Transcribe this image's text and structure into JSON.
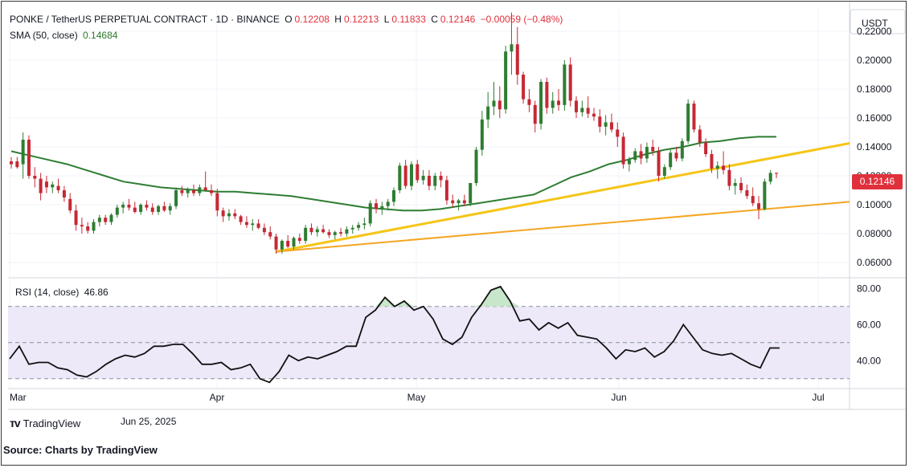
{
  "header": {
    "symbol": "PONKE / TetherUS PERPETUAL CONTRACT · 1D · BINANCE",
    "o_label": "O",
    "o_value": "0.12208",
    "h_label": "H",
    "h_value": "0.12213",
    "l_label": "L",
    "l_value": "0.11833",
    "c_label": "C",
    "c_value": "0.12146",
    "change": "−0.00059 (−0.48%)",
    "sma_label": "SMA (50, close)",
    "sma_value": "0.14684",
    "rsi_label": "RSI (14, close)",
    "rsi_value": "46.86"
  },
  "price_axis": {
    "currency": "USDT",
    "current_price": "0.12146"
  },
  "footer": {
    "brand": "TradingView",
    "date": "Jun 25, 2025",
    "source": "Source: Charts by TradingView"
  },
  "colors": {
    "up": "#2e7d32",
    "down": "#c62834",
    "sma": "#2e7d32",
    "trendline_upper": "#f5c518",
    "trendline_lower": "#f5a623",
    "rsi_band": "#ede9f9",
    "rsi_line": "#111111"
  },
  "chart_data": [
    {
      "type": "candlestick",
      "title": "PONKE / TetherUS PERPETUAL CONTRACT · 1D · BINANCE",
      "x_tick_labels": [
        "Mar",
        "Apr",
        "May",
        "Jun",
        "Jul"
      ],
      "y_tick_labels": [
        "0.22000",
        "0.20000",
        "0.18000",
        "0.16000",
        "0.14000",
        "0.12000",
        "0.10000",
        "0.08000",
        "0.06000"
      ],
      "ylim": [
        0.05,
        0.235
      ],
      "candles": [
        [
          0.13,
          0.133,
          0.125,
          0.128
        ],
        [
          0.13,
          0.133,
          0.125,
          0.126
        ],
        [
          0.128,
          0.15,
          0.118,
          0.145
        ],
        [
          0.145,
          0.148,
          0.118,
          0.12
        ],
        [
          0.12,
          0.126,
          0.112,
          0.118
        ],
        [
          0.118,
          0.122,
          0.103,
          0.108
        ],
        [
          0.116,
          0.12,
          0.108,
          0.112
        ],
        [
          0.112,
          0.116,
          0.108,
          0.114
        ],
        [
          0.113,
          0.118,
          0.108,
          0.11
        ],
        [
          0.11,
          0.113,
          0.102,
          0.105
        ],
        [
          0.104,
          0.108,
          0.094,
          0.096
        ],
        [
          0.096,
          0.1,
          0.082,
          0.086
        ],
        [
          0.086,
          0.091,
          0.08,
          0.085
        ],
        [
          0.085,
          0.088,
          0.08,
          0.082
        ],
        [
          0.082,
          0.09,
          0.08,
          0.088
        ],
        [
          0.088,
          0.093,
          0.085,
          0.091
        ],
        [
          0.091,
          0.093,
          0.086,
          0.088
        ],
        [
          0.088,
          0.094,
          0.086,
          0.093
        ],
        [
          0.093,
          0.1,
          0.091,
          0.098
        ],
        [
          0.098,
          0.102,
          0.094,
          0.1
        ],
        [
          0.1,
          0.104,
          0.096,
          0.098
        ],
        [
          0.098,
          0.102,
          0.094,
          0.095
        ],
        [
          0.095,
          0.101,
          0.093,
          0.1
        ],
        [
          0.1,
          0.103,
          0.096,
          0.098
        ],
        [
          0.098,
          0.101,
          0.093,
          0.095
        ],
        [
          0.095,
          0.1,
          0.093,
          0.099
        ],
        [
          0.099,
          0.102,
          0.095,
          0.096
        ],
        [
          0.096,
          0.101,
          0.093,
          0.099
        ],
        [
          0.099,
          0.112,
          0.097,
          0.11
        ],
        [
          0.11,
          0.113,
          0.106,
          0.108
        ],
        [
          0.108,
          0.112,
          0.105,
          0.11
        ],
        [
          0.11,
          0.114,
          0.106,
          0.108
        ],
        [
          0.108,
          0.114,
          0.106,
          0.112
        ],
        [
          0.112,
          0.123,
          0.11,
          0.11
        ],
        [
          0.11,
          0.114,
          0.106,
          0.108
        ],
        [
          0.108,
          0.111,
          0.092,
          0.096
        ],
        [
          0.096,
          0.098,
          0.088,
          0.092
        ],
        [
          0.092,
          0.097,
          0.089,
          0.094
        ],
        [
          0.094,
          0.097,
          0.09,
          0.092
        ],
        [
          0.092,
          0.093,
          0.086,
          0.088
        ],
        [
          0.088,
          0.092,
          0.084,
          0.086
        ],
        [
          0.086,
          0.09,
          0.082,
          0.087
        ],
        [
          0.087,
          0.09,
          0.083,
          0.084
        ],
        [
          0.084,
          0.087,
          0.079,
          0.081
        ],
        [
          0.081,
          0.085,
          0.076,
          0.078
        ],
        [
          0.078,
          0.08,
          0.066,
          0.069
        ],
        [
          0.069,
          0.076,
          0.066,
          0.075
        ],
        [
          0.075,
          0.079,
          0.07,
          0.071
        ],
        [
          0.071,
          0.078,
          0.069,
          0.077
        ],
        [
          0.077,
          0.08,
          0.073,
          0.075
        ],
        [
          0.075,
          0.086,
          0.073,
          0.084
        ],
        [
          0.084,
          0.087,
          0.079,
          0.081
        ],
        [
          0.081,
          0.085,
          0.078,
          0.083
        ],
        [
          0.083,
          0.086,
          0.08,
          0.081
        ],
        [
          0.081,
          0.083,
          0.077,
          0.079
        ],
        [
          0.079,
          0.082,
          0.076,
          0.081
        ],
        [
          0.081,
          0.084,
          0.078,
          0.08
        ],
        [
          0.08,
          0.085,
          0.078,
          0.083
        ],
        [
          0.083,
          0.086,
          0.08,
          0.084
        ],
        [
          0.084,
          0.088,
          0.082,
          0.086
        ],
        [
          0.086,
          0.091,
          0.083,
          0.087
        ],
        [
          0.087,
          0.103,
          0.085,
          0.101
        ],
        [
          0.101,
          0.104,
          0.094,
          0.097
        ],
        [
          0.097,
          0.102,
          0.093,
          0.099
        ],
        [
          0.099,
          0.104,
          0.096,
          0.102
        ],
        [
          0.102,
          0.112,
          0.099,
          0.11
        ],
        [
          0.11,
          0.129,
          0.108,
          0.127
        ],
        [
          0.127,
          0.131,
          0.111,
          0.113
        ],
        [
          0.113,
          0.13,
          0.11,
          0.128
        ],
        [
          0.128,
          0.131,
          0.115,
          0.117
        ],
        [
          0.117,
          0.124,
          0.114,
          0.12
        ],
        [
          0.12,
          0.124,
          0.11,
          0.113
        ],
        [
          0.113,
          0.122,
          0.11,
          0.12
        ],
        [
          0.12,
          0.123,
          0.112,
          0.117
        ],
        [
          0.117,
          0.12,
          0.1,
          0.103
        ],
        [
          0.103,
          0.107,
          0.098,
          0.101
        ],
        [
          0.101,
          0.104,
          0.096,
          0.103
        ],
        [
          0.103,
          0.107,
          0.099,
          0.101
        ],
        [
          0.101,
          0.115,
          0.099,
          0.115
        ],
        [
          0.115,
          0.14,
          0.113,
          0.138
        ],
        [
          0.138,
          0.165,
          0.134,
          0.159
        ],
        [
          0.159,
          0.178,
          0.153,
          0.168
        ],
        [
          0.168,
          0.185,
          0.162,
          0.172
        ],
        [
          0.172,
          0.182,
          0.16,
          0.166
        ],
        [
          0.166,
          0.21,
          0.163,
          0.206
        ],
        [
          0.206,
          0.233,
          0.19,
          0.211
        ],
        [
          0.211,
          0.223,
          0.183,
          0.19
        ],
        [
          0.19,
          0.192,
          0.17,
          0.173
        ],
        [
          0.173,
          0.18,
          0.164,
          0.169
        ],
        [
          0.169,
          0.172,
          0.15,
          0.156
        ],
        [
          0.156,
          0.187,
          0.152,
          0.185
        ],
        [
          0.185,
          0.188,
          0.163,
          0.167
        ],
        [
          0.167,
          0.178,
          0.163,
          0.172
        ],
        [
          0.172,
          0.18,
          0.165,
          0.169
        ],
        [
          0.169,
          0.2,
          0.165,
          0.197
        ],
        [
          0.197,
          0.202,
          0.168,
          0.172
        ],
        [
          0.172,
          0.175,
          0.16,
          0.164
        ],
        [
          0.164,
          0.172,
          0.161,
          0.167
        ],
        [
          0.167,
          0.175,
          0.16,
          0.163
        ],
        [
          0.163,
          0.167,
          0.158,
          0.161
        ],
        [
          0.161,
          0.166,
          0.15,
          0.154
        ],
        [
          0.154,
          0.162,
          0.148,
          0.157
        ],
        [
          0.157,
          0.163,
          0.15,
          0.152
        ],
        [
          0.152,
          0.157,
          0.14,
          0.147
        ],
        [
          0.147,
          0.15,
          0.125,
          0.128
        ],
        [
          0.128,
          0.133,
          0.123,
          0.131
        ],
        [
          0.131,
          0.139,
          0.129,
          0.137
        ],
        [
          0.137,
          0.142,
          0.128,
          0.132
        ],
        [
          0.132,
          0.143,
          0.129,
          0.14
        ],
        [
          0.14,
          0.145,
          0.134,
          0.137
        ],
        [
          0.137,
          0.14,
          0.116,
          0.12
        ],
        [
          0.12,
          0.128,
          0.118,
          0.126
        ],
        [
          0.126,
          0.138,
          0.124,
          0.136
        ],
        [
          0.136,
          0.14,
          0.13,
          0.132
        ],
        [
          0.132,
          0.146,
          0.13,
          0.144
        ],
        [
          0.144,
          0.173,
          0.142,
          0.17
        ],
        [
          0.17,
          0.172,
          0.15,
          0.152
        ],
        [
          0.152,
          0.155,
          0.14,
          0.143
        ],
        [
          0.143,
          0.146,
          0.133,
          0.135
        ],
        [
          0.135,
          0.138,
          0.122,
          0.125
        ],
        [
          0.125,
          0.13,
          0.118,
          0.127
        ],
        [
          0.127,
          0.137,
          0.121,
          0.124
        ],
        [
          0.124,
          0.128,
          0.11,
          0.113
        ],
        [
          0.113,
          0.118,
          0.107,
          0.115
        ],
        [
          0.115,
          0.119,
          0.108,
          0.11
        ],
        [
          0.11,
          0.114,
          0.104,
          0.106
        ],
        [
          0.106,
          0.112,
          0.099,
          0.101
        ],
        [
          0.101,
          0.106,
          0.09,
          0.097
        ],
        [
          0.097,
          0.118,
          0.096,
          0.116
        ],
        [
          0.116,
          0.124,
          0.114,
          0.122
        ],
        [
          0.12208,
          0.12213,
          0.11833,
          0.12146
        ]
      ],
      "sma_50": [
        0.137,
        0.134,
        0.131,
        0.128,
        0.124,
        0.12,
        0.116,
        0.114,
        0.112,
        0.111,
        0.11,
        0.109,
        0.109,
        0.108,
        0.107,
        0.106,
        0.104,
        0.102,
        0.1,
        0.098,
        0.097,
        0.096,
        0.096,
        0.097,
        0.099,
        0.101,
        0.103,
        0.105,
        0.107,
        0.113,
        0.119,
        0.123,
        0.128,
        0.131,
        0.135,
        0.138,
        0.14,
        0.143,
        0.144,
        0.146,
        0.147,
        0.147
      ],
      "trendlines": [
        {
          "from": [
            "Apr 08",
            0.0675
          ],
          "to": [
            "Jul 03",
            0.1425
          ]
        },
        {
          "from": [
            "Apr 08",
            0.0675
          ],
          "to": [
            "Jul 03",
            0.102
          ]
        }
      ]
    },
    {
      "type": "line",
      "title": "RSI (14, close)",
      "y_tick_labels": [
        "80.00",
        "60.00",
        "40.00"
      ],
      "ylim": [
        25,
        85
      ],
      "bands": [
        70,
        50,
        30
      ],
      "values": [
        41,
        48,
        38,
        39,
        39,
        36,
        35,
        32,
        31,
        34,
        38,
        41,
        43,
        42,
        44,
        48,
        48,
        49,
        49,
        44,
        38,
        38,
        39,
        35,
        36,
        38,
        30,
        28,
        34,
        43,
        40,
        42,
        41,
        43,
        45,
        48,
        48,
        64,
        68,
        75,
        70,
        73,
        68,
        70,
        63,
        52,
        49,
        53,
        64,
        71,
        79,
        81,
        73,
        62,
        63,
        57,
        61,
        58,
        61,
        54,
        53,
        52,
        47,
        41,
        46,
        45,
        47,
        42,
        45,
        51,
        60,
        53,
        46,
        44,
        43,
        44,
        41,
        38,
        36,
        47,
        47
      ]
    }
  ]
}
